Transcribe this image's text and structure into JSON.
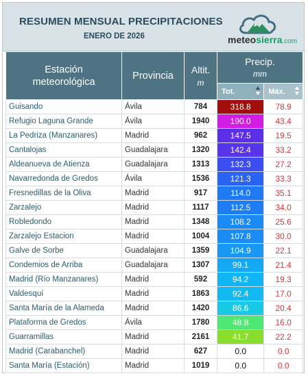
{
  "header": {
    "title": "RESUMEN MENSUAL PRECIPITACIONES",
    "subtitle": "ENERO DE 2026",
    "logo_text_a": "meteo",
    "logo_text_b": "sierra",
    "logo_text_c": ".com"
  },
  "columns": {
    "station_line1": "Estación",
    "station_line2": "meteorológica",
    "province": "Provincia",
    "altitude": "Altit.",
    "altitude_unit": "m",
    "precip": "Precip.",
    "precip_unit": "mm",
    "total": "Tot.",
    "max": "Máx."
  },
  "rows": [
    {
      "station": "Guisando",
      "province": "Ávila",
      "altitude": "784",
      "total": "318.8",
      "max": "78.9",
      "color": "#a30d0d",
      "text": "#ffffff"
    },
    {
      "station": "Refugio Laguna Grande",
      "province": "Ávila",
      "altitude": "1940",
      "total": "190.0",
      "max": "43.4",
      "color": "#d41ce6",
      "text": "#ffffff"
    },
    {
      "station": "La Pedriza (Manzanares)",
      "province": "Madrid",
      "altitude": "962",
      "total": "147.5",
      "max": "19.5",
      "color": "#5d2ee8",
      "text": "#ffffff"
    },
    {
      "station": "Cantalojas",
      "province": "Guadalajara",
      "altitude": "1320",
      "total": "142.4",
      "max": "33.2",
      "color": "#5534ea",
      "text": "#ffffff"
    },
    {
      "station": "Aldeanueva de Atienza",
      "province": "Guadalajara",
      "altitude": "1313",
      "total": "132.3",
      "max": "27.2",
      "color": "#3b4df0",
      "text": "#ffffff"
    },
    {
      "station": "Navarredonda de Gredos",
      "province": "Ávila",
      "altitude": "1536",
      "total": "121.3",
      "max": "33.3",
      "color": "#2a62f3",
      "text": "#ffffff"
    },
    {
      "station": "Fresnedillas de la Oliva",
      "province": "Madrid",
      "altitude": "917",
      "total": "114.0",
      "max": "35.1",
      "color": "#1f78f4",
      "text": "#ffffff"
    },
    {
      "station": "Zarzalejo",
      "province": "Madrid",
      "altitude": "1117",
      "total": "112.5",
      "max": "34.0",
      "color": "#1f7df4",
      "text": "#ffffff"
    },
    {
      "station": "Robledondo",
      "province": "Madrid",
      "altitude": "1348",
      "total": "108.2",
      "max": "25.6",
      "color": "#1b8af5",
      "text": "#ffffff"
    },
    {
      "station": "Zarzalejo Estacion",
      "province": "Madrid",
      "altitude": "1004",
      "total": "107.8",
      "max": "30.0",
      "color": "#1b8cf5",
      "text": "#ffffff"
    },
    {
      "station": "Galve de Sorbe",
      "province": "Guadalajara",
      "altitude": "1359",
      "total": "104.9",
      "max": "22.1",
      "color": "#1898f5",
      "text": "#ffffff"
    },
    {
      "station": "Condemios de Arriba",
      "province": "Guadalajara",
      "altitude": "1307",
      "total": "99.1",
      "max": "21.4",
      "color": "#14a9f5",
      "text": "#ffffff"
    },
    {
      "station": "Madrid (Río Manzanares)",
      "province": "Madrid",
      "altitude": "592",
      "total": "94.2",
      "max": "19.3",
      "color": "#12b5f4",
      "text": "#ffffff"
    },
    {
      "station": "Valdesquí",
      "province": "Madrid",
      "altitude": "1863",
      "total": "92.4",
      "max": "17.0",
      "color": "#12baf2",
      "text": "#ffffff"
    },
    {
      "station": "Santa María de la Alameda",
      "province": "Madrid",
      "altitude": "1420",
      "total": "86.6",
      "max": "20.4",
      "color": "#18c9e6",
      "text": "#ffffff"
    },
    {
      "station": "Plataforma de Gredos",
      "province": "Ávila",
      "altitude": "1780",
      "total": "48.8",
      "max": "16.0",
      "color": "#4ee872",
      "text": "#ffffff"
    },
    {
      "station": "Guarramillas",
      "province": "Madrid",
      "altitude": "2161",
      "total": "41.7",
      "max": "22.2",
      "color": "#8add2a",
      "text": "#ffffff"
    },
    {
      "station": "Madrid (Carabanchel)",
      "province": "Madrid",
      "altitude": "627",
      "total": "0.0",
      "max": "0.0",
      "color": "#ffffff",
      "text": "#111111"
    },
    {
      "station": "Santa María (Estación)",
      "province": "Madrid",
      "altitude": "1019",
      "total": "0.0",
      "max": "0.0",
      "color": "#ffffff",
      "text": "#111111"
    }
  ]
}
